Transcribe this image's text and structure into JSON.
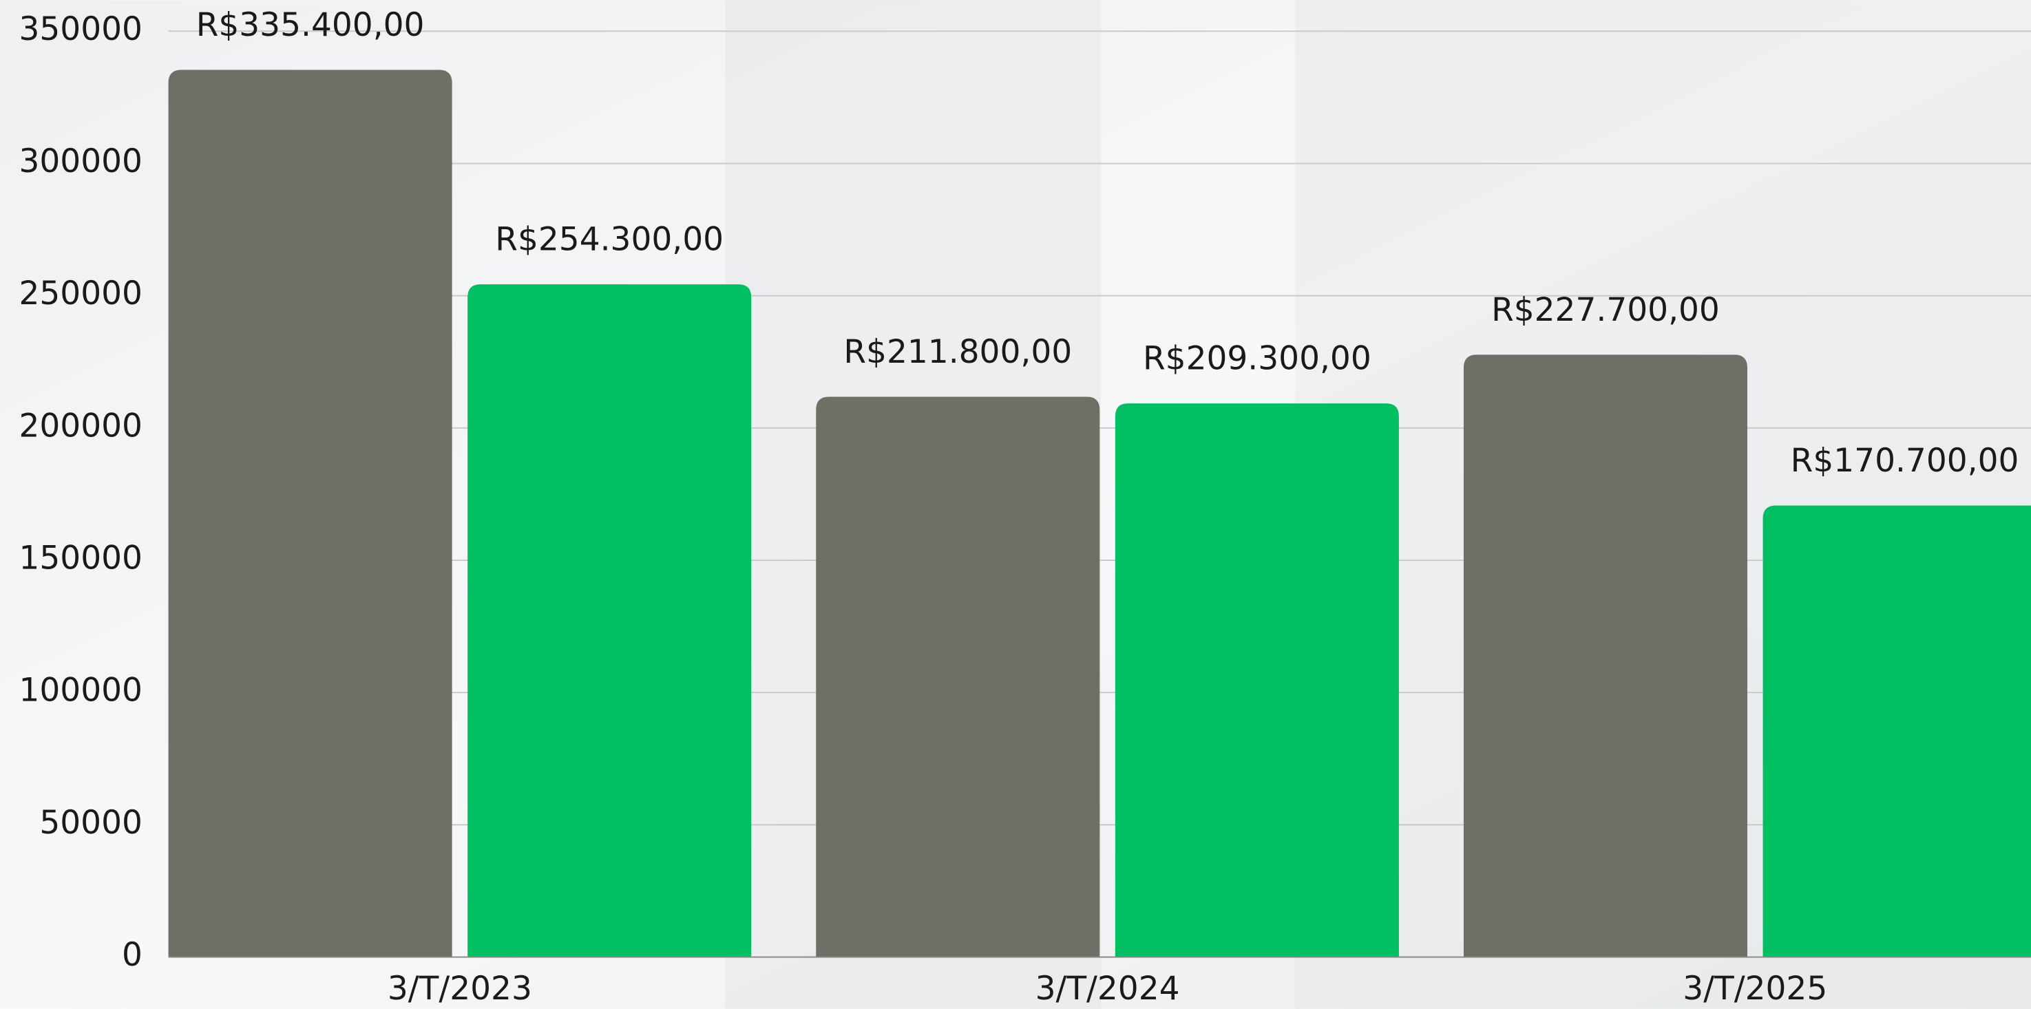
{
  "chart_data": {
    "type": "bar",
    "categories": [
      "3/T/2023",
      "3/T/2024",
      "3/T/2025"
    ],
    "series": [
      {
        "color": "#6f6f66",
        "values": [
          335400,
          211800,
          227700
        ],
        "value_labels": [
          "R$335.400,00",
          "R$211.800,00",
          "R$227.700,00"
        ]
      },
      {
        "color": "#00be62",
        "values": [
          254300,
          209300,
          170700
        ],
        "value_labels": [
          "R$254.300,00",
          "R$209.300,00",
          "R$170.700,00"
        ]
      }
    ],
    "ylim": [
      0,
      350000
    ],
    "yticks": [
      0,
      50000,
      100000,
      150000,
      200000,
      250000,
      300000,
      350000
    ],
    "grid": true
  }
}
